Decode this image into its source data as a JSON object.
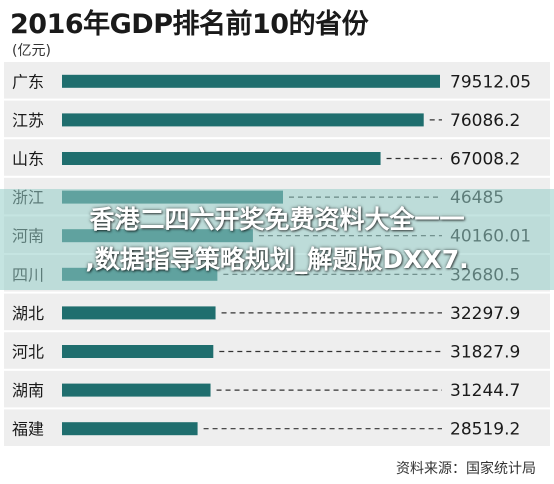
{
  "title": "2016年GDP排名前10的省份",
  "unit": "(亿元)",
  "source": "资料来源：国家统计局",
  "colors": {
    "bar": "#1f6e6e",
    "row_bg": "#eeeeee",
    "separator": "#ffffff",
    "dash": "#333333",
    "overlay": "#96cdc8"
  },
  "watermark": {
    "line1": "香港二四六开奖免费资料大全一一",
    "line2": ",数据指导策略规划_解题版DXX7."
  },
  "chart_data": {
    "type": "bar",
    "orientation": "horizontal",
    "title": "2016年GDP排名前10的省份",
    "ylabel": "(亿元)",
    "categories": [
      "广东",
      "江苏",
      "山东",
      "浙江",
      "河南",
      "四川",
      "湖北",
      "河北",
      "湖南",
      "福建"
    ],
    "values": [
      79512.05,
      76086.2,
      67008.2,
      46485,
      40160.01,
      32680.5,
      32297.9,
      31827.9,
      31244.7,
      28519.2
    ],
    "value_labels": [
      "79512.05",
      "76086.2",
      "67008.2",
      "46485",
      "40160.01",
      "32680.5",
      "32297.9",
      "31827.9",
      "31244.7",
      "28519.2"
    ],
    "xlim": [
      0,
      79512.05
    ],
    "grid": false,
    "legend": "none"
  }
}
